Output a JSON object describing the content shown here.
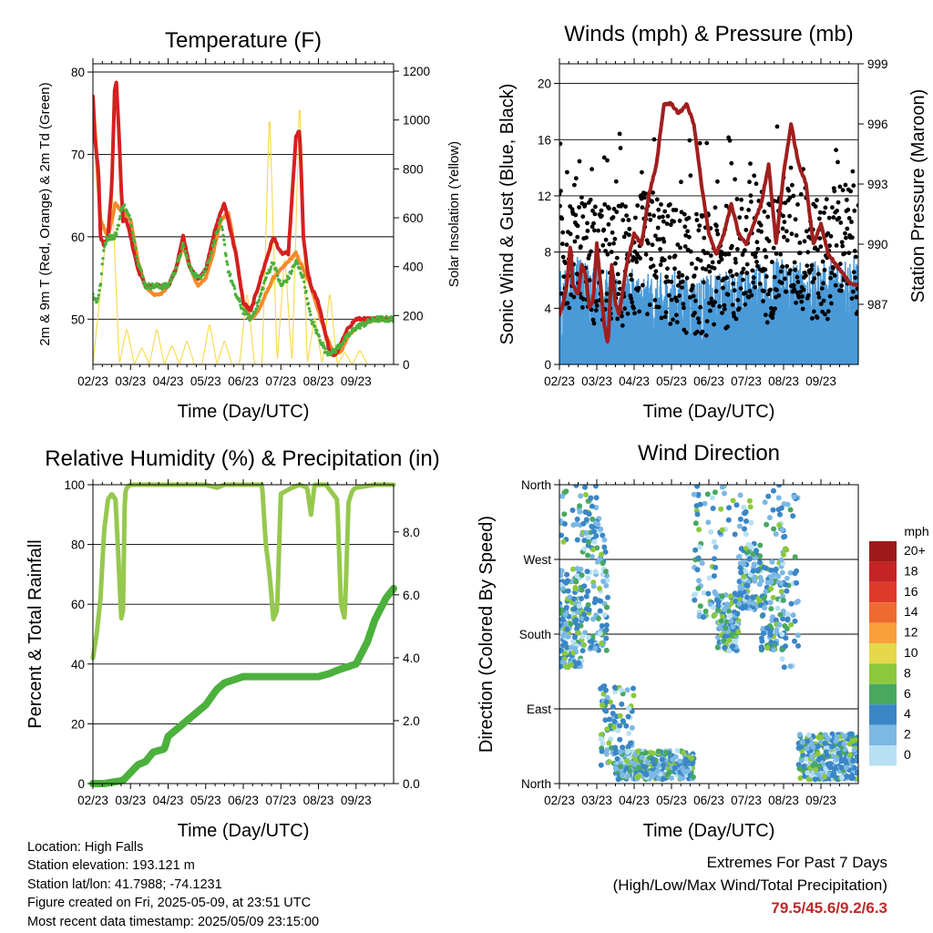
{
  "chart_data": [
    {
      "type": "line",
      "title": "Temperature (F)",
      "xlabel": "Time (Day/UTC)",
      "ylabel": "2m & 9m T (Red, Orange) & 2m Td (Green)",
      "y2label": "Solar Insolation (Yellow)",
      "x_ticks": [
        "02/23",
        "03/23",
        "04/23",
        "05/23",
        "06/23",
        "07/23",
        "08/23",
        "09/23"
      ],
      "y_ticks": [
        "50",
        "60",
        "70",
        "80"
      ],
      "y2_ticks": [
        "0",
        "200",
        "400",
        "600",
        "800",
        "1000",
        "1200"
      ],
      "ylim": [
        44.5,
        81
      ],
      "y2lim": [
        0,
        1230
      ],
      "grid": true,
      "colors": {
        "t2m": "#d42020",
        "t9m": "#f58a2a",
        "td2m": "#4cb03c",
        "solar": "#f7d84a"
      },
      "series": [
        {
          "name": "2m T",
          "x": [
            0,
            0.05,
            0.15,
            0.2,
            0.3,
            0.4,
            0.5,
            0.58,
            0.62,
            0.7,
            0.75,
            0.8,
            0.9,
            1.0,
            1.2,
            1.4,
            1.6,
            1.8,
            2.0,
            2.2,
            2.4,
            2.6,
            2.8,
            3.0,
            3.2,
            3.4,
            3.5,
            3.6,
            3.8,
            4.0,
            4.2,
            4.4,
            4.6,
            4.8,
            5.0,
            5.2,
            5.4,
            5.5,
            5.6,
            5.7,
            5.8,
            6.0,
            6.2,
            6.3,
            6.4,
            6.5,
            6.6,
            6.8,
            7.0,
            7.2,
            7.4,
            7.6,
            7.8,
            8.0
          ],
          "values": [
            77,
            72,
            68,
            60,
            59,
            60,
            66,
            78,
            79,
            72,
            66,
            62,
            62,
            60,
            56,
            54,
            54,
            54,
            54,
            56,
            60,
            56,
            55,
            56,
            60,
            63,
            64,
            62,
            58,
            52,
            51,
            54,
            57,
            60,
            58,
            58,
            72,
            73,
            60,
            56,
            54,
            52,
            48,
            46,
            45.5,
            46,
            47,
            49,
            50,
            50,
            50,
            50,
            50,
            50
          ]
        },
        {
          "name": "9m T",
          "x": [
            0,
            0.2,
            0.4,
            0.6,
            0.8,
            1.0,
            1.2,
            1.4,
            1.6,
            1.8,
            2.0,
            2.2,
            2.4,
            2.6,
            2.8,
            3.0,
            3.2,
            3.4,
            3.6,
            3.8,
            4.0,
            4.2,
            4.4,
            4.6,
            4.8,
            5.0,
            5.2,
            5.4,
            5.6,
            5.8,
            6.0,
            6.2,
            6.4,
            6.6,
            6.8,
            7.0,
            7.5,
            8.0
          ],
          "values": [
            77,
            62,
            60,
            64,
            63,
            62,
            57,
            54,
            53,
            53,
            54,
            56,
            59,
            56,
            54,
            55,
            58,
            62,
            63,
            58,
            52,
            50,
            51,
            53,
            55,
            56,
            57,
            58,
            56,
            54,
            51,
            48,
            46,
            46,
            48,
            49,
            50,
            50
          ]
        },
        {
          "name": "2m Td",
          "x": [
            0,
            0.1,
            0.2,
            0.3,
            0.4,
            0.5,
            0.6,
            0.7,
            0.8,
            1.0,
            1.2,
            1.4,
            1.6,
            1.8,
            2.0,
            2.2,
            2.4,
            2.6,
            2.8,
            3.0,
            3.2,
            3.4,
            3.6,
            3.8,
            4.0,
            4.2,
            4.4,
            4.6,
            4.8,
            5.0,
            5.2,
            5.4,
            5.6,
            5.8,
            6.0,
            6.2,
            6.4,
            6.6,
            6.8,
            7.0,
            7.5,
            8.0
          ],
          "values": [
            53,
            52,
            54,
            59,
            60,
            60,
            60,
            62,
            64,
            62,
            57,
            54,
            54,
            54,
            54,
            56,
            59,
            56,
            55,
            56,
            59,
            62,
            56,
            53,
            51,
            50,
            52,
            55,
            57,
            54,
            55,
            57,
            55,
            50,
            48,
            46,
            46,
            47,
            48,
            49,
            50,
            50
          ]
        },
        {
          "name": "Solar",
          "axis": "right",
          "x": [
            0,
            0.5,
            0.7,
            0.9,
            1.1,
            1.3,
            1.5,
            1.7,
            1.9,
            2.1,
            2.3,
            2.5,
            2.7,
            2.9,
            3.1,
            3.3,
            3.5,
            3.7,
            3.9,
            4.1,
            4.3,
            4.5,
            4.7,
            4.9,
            5.1,
            5.3,
            5.5,
            5.7,
            5.9,
            6.1,
            6.3,
            6.5,
            6.7,
            6.9,
            7.1,
            7.3,
            7.5,
            7.7,
            7.9,
            8.0
          ],
          "values": [
            0,
            750,
            0,
            150,
            0,
            70,
            0,
            150,
            0,
            80,
            0,
            100,
            0,
            0,
            170,
            0,
            100,
            0,
            0,
            300,
            0,
            0,
            1050,
            0,
            450,
            0,
            1100,
            0,
            200,
            0,
            300,
            0,
            50,
            0,
            60,
            0,
            0,
            0,
            0,
            0
          ]
        }
      ]
    },
    {
      "type": "scatter",
      "title": "Winds (mph) & Pressure (mb)",
      "xlabel": "Time (Day/UTC)",
      "ylabel": "Sonic Wind & Gust (Blue, Black)",
      "y2label": "Station Pressure (Maroon)",
      "x_ticks": [
        "02/23",
        "03/23",
        "04/23",
        "05/23",
        "06/23",
        "07/23",
        "08/23",
        "09/23"
      ],
      "y_ticks": [
        "0",
        "4",
        "8",
        "12",
        "16",
        "20"
      ],
      "y2_ticks": [
        "987",
        "990",
        "993",
        "996",
        "999"
      ],
      "ylim": [
        0,
        21.4
      ],
      "y2lim": [
        984,
        999
      ],
      "grid": true,
      "colors": {
        "wind": "#4a9ad8",
        "gust": "#000000",
        "pressure": "#a01e1e"
      },
      "series": [
        {
          "name": "Pressure",
          "axis": "right",
          "x": [
            0,
            0.1,
            0.2,
            0.3,
            0.35,
            0.5,
            0.6,
            0.7,
            0.8,
            0.9,
            1.0,
            1.1,
            1.2,
            1.3,
            1.4,
            1.5,
            1.6,
            1.8,
            2.0,
            2.2,
            2.4,
            2.6,
            2.8,
            3.0,
            3.2,
            3.4,
            3.6,
            3.8,
            4.0,
            4.2,
            4.4,
            4.6,
            4.8,
            5.0,
            5.2,
            5.4,
            5.6,
            5.8,
            6.0,
            6.2,
            6.4,
            6.6,
            6.8,
            7.0,
            7.2,
            7.4,
            7.6,
            7.8,
            8.0
          ],
          "values": [
            986.5,
            987,
            988,
            990,
            988,
            987.5,
            989,
            988.5,
            986.8,
            987.2,
            990,
            988,
            986,
            985,
            989,
            987,
            986.5,
            989,
            990.5,
            990,
            992.5,
            994,
            997,
            997,
            996.5,
            997,
            996,
            993,
            990.5,
            989.5,
            990.5,
            992,
            990.5,
            990,
            991,
            992,
            994,
            990,
            993.5,
            996,
            994,
            993,
            990,
            991,
            989.5,
            989,
            988.5,
            988,
            988
          ]
        }
      ]
    },
    {
      "type": "line",
      "title": "Relative Humidity (%) & Precipitation (in)",
      "xlabel": "Time (Day/UTC)",
      "ylabel": "Percent & Total Rainfall",
      "x_ticks": [
        "02/23",
        "03/23",
        "04/23",
        "05/23",
        "06/23",
        "07/23",
        "08/23",
        "09/23"
      ],
      "y_ticks": [
        "0",
        "20",
        "40",
        "60",
        "80",
        "100"
      ],
      "y2_ticks": [
        "0.0",
        "2.0",
        "4.0",
        "6.0",
        "8.0"
      ],
      "ylim": [
        0,
        100
      ],
      "y2lim": [
        0,
        9.5
      ],
      "grid": true,
      "colors": {
        "rh": "#96c84e",
        "precip": "#4cb03c"
      },
      "series": [
        {
          "name": "RH",
          "x": [
            0,
            0.1,
            0.2,
            0.3,
            0.4,
            0.5,
            0.6,
            0.7,
            0.75,
            0.8,
            0.85,
            0.9,
            1.0,
            1.2,
            1.4,
            1.6,
            1.8,
            2.0,
            2.5,
            3.0,
            3.3,
            3.5,
            4.0,
            4.5,
            4.6,
            4.7,
            4.8,
            4.9,
            5.0,
            5.3,
            5.5,
            5.7,
            5.8,
            5.9,
            6.0,
            6.2,
            6.5,
            6.6,
            6.7,
            6.8,
            6.9,
            7.0,
            7.5,
            8.0
          ],
          "values": [
            42,
            50,
            62,
            85,
            95,
            97,
            95,
            70,
            55,
            58,
            97,
            99,
            100,
            100,
            100,
            100,
            100,
            100,
            100,
            100,
            99,
            100,
            100,
            100,
            80,
            70,
            55,
            58,
            97,
            99,
            100,
            99,
            90,
            100,
            100,
            100,
            95,
            60,
            55,
            94,
            98,
            99,
            100,
            100
          ]
        },
        {
          "name": "Precip",
          "axis": "right",
          "x": [
            0,
            0.3,
            0.8,
            1.2,
            1.4,
            1.6,
            1.9,
            2.0,
            2.5,
            3.0,
            3.3,
            3.5,
            4.0,
            5.0,
            6.0,
            6.3,
            6.5,
            7.0,
            7.3,
            7.5,
            7.8,
            8.0
          ],
          "values": [
            0,
            0,
            0.1,
            0.6,
            0.7,
            1.0,
            1.1,
            1.5,
            2.0,
            2.5,
            3.0,
            3.2,
            3.4,
            3.4,
            3.4,
            3.5,
            3.6,
            3.8,
            4.5,
            5.2,
            5.9,
            6.2
          ]
        }
      ]
    },
    {
      "type": "scatter",
      "title": "Wind Direction",
      "xlabel": "Time (Day/UTC)",
      "ylabel": "Direction (Colored By Speed)",
      "x_ticks": [
        "02/23",
        "03/23",
        "04/23",
        "05/23",
        "06/23",
        "07/23",
        "08/23",
        "09/23"
      ],
      "y_ticks": [
        "North",
        "East",
        "South",
        "West",
        "North"
      ],
      "ylim": [
        0,
        360
      ],
      "grid": true,
      "legend": {
        "title": "mph",
        "labels": [
          "20+",
          "18",
          "16",
          "14",
          "12",
          "10",
          "8",
          "6",
          "4",
          "2",
          "0"
        ],
        "colors": [
          "#9c1a1a",
          "#c42424",
          "#de3a2a",
          "#ee6a32",
          "#f8a03c",
          "#e6d84a",
          "#8cc83c",
          "#48a860",
          "#3a86c6",
          "#7cb8e4",
          "#b8e0f4"
        ]
      }
    }
  ],
  "info": {
    "location": "Location: High Falls",
    "elevation": "Station elevation: 193.121 m",
    "latlon": "Station lat/lon: 41.7988; -74.1231",
    "created": "Figure created on Fri, 2025-05-09, at 23:51 UTC",
    "recent": "Most recent data timestamp: 2025/05/09 23:15:00"
  },
  "extremes": {
    "line1": "Extremes For Past 7 Days",
    "line2": "(High/Low/Max Wind/Total Precipitation)",
    "values": "79.5/45.6/9.2/6.3"
  }
}
